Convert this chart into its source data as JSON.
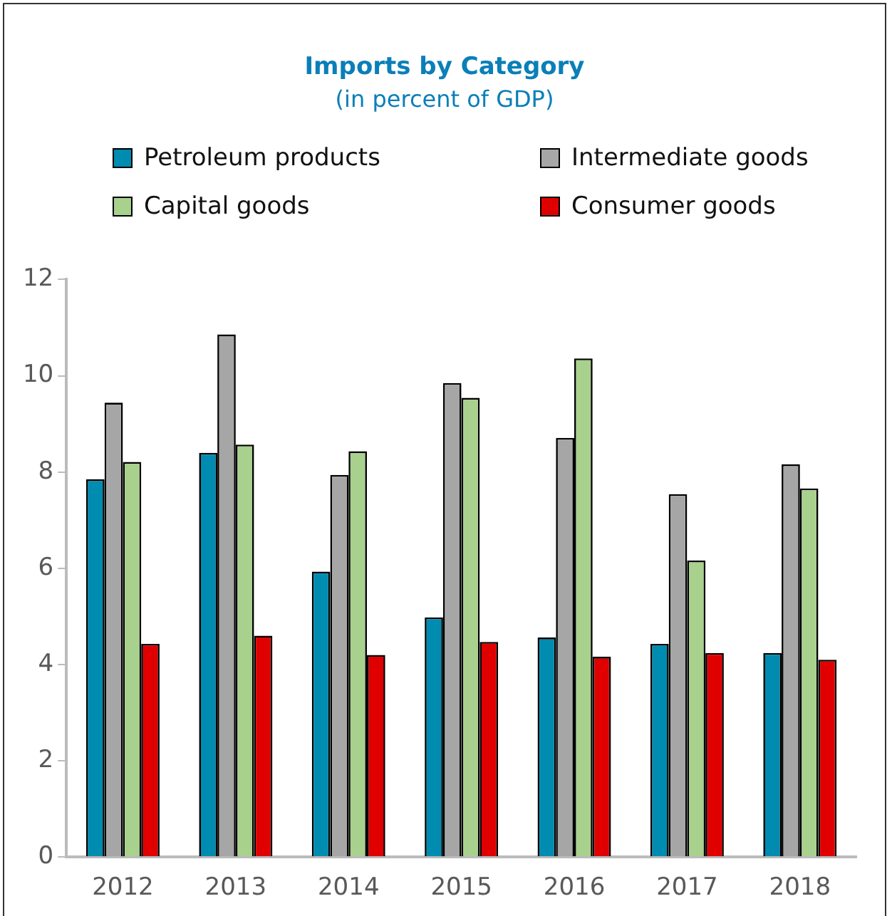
{
  "chart_data": {
    "type": "bar",
    "title": "Imports by Category",
    "subtitle": "(in percent of GDP)",
    "categories": [
      "2012",
      "2013",
      "2014",
      "2015",
      "2016",
      "2017",
      "2018"
    ],
    "series": [
      {
        "name": "Petroleum products",
        "color": "#008bb0",
        "values": [
          7.85,
          8.4,
          5.93,
          4.98,
          4.56,
          4.43,
          4.24
        ]
      },
      {
        "name": "Intermediate goods",
        "color": "#a6a6a6",
        "values": [
          9.44,
          10.86,
          7.94,
          9.85,
          8.71,
          7.54,
          8.16
        ]
      },
      {
        "name": "Capital goods",
        "color": "#a9d18e",
        "values": [
          8.21,
          8.57,
          8.43,
          9.54,
          10.36,
          6.16,
          7.66
        ]
      },
      {
        "name": "Consumer goods",
        "color": "#e00000",
        "values": [
          4.43,
          4.6,
          4.2,
          4.47,
          4.16,
          4.24,
          4.1
        ]
      }
    ],
    "ylim": [
      0,
      12
    ],
    "yticks": [
      0,
      2,
      4,
      6,
      8,
      10,
      12
    ],
    "grid": false,
    "legend": "top"
  }
}
